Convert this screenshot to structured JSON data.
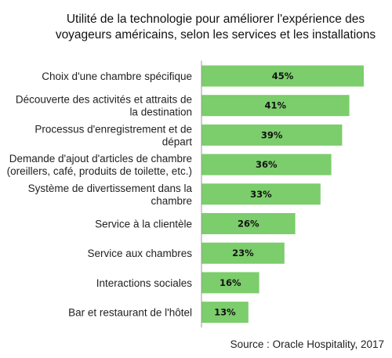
{
  "chart_data": {
    "type": "bar",
    "orientation": "horizontal",
    "title": "Utilité de la technologie pour améliorer l'expérience des voyageurs américains, selon les services et les installations",
    "categories": [
      "Choix d'une chambre spécifique",
      "Découverte des activités et attraits de la destination",
      "Processus d'enregistrement et de départ",
      "Demande d'ajout d'articles de chambre (oreillers, café, produits de toilette, etc.)",
      "Système de divertissement dans la chambre",
      "Service à la clientèle",
      "Service aux chambres",
      "Interactions sociales",
      "Bar et restaurant de l'hôtel"
    ],
    "values": [
      45,
      41,
      39,
      36,
      33,
      26,
      23,
      16,
      13
    ],
    "value_labels": [
      "45%",
      "41%",
      "39%",
      "36%",
      "33%",
      "26%",
      "23%",
      "16%",
      "13%"
    ],
    "unit": "%",
    "source": "Source : Oracle Hospitality, 2017",
    "bar_color": "#7ccd6c",
    "axis_color": "#9a9a9a",
    "grid": false,
    "legend": "none"
  }
}
